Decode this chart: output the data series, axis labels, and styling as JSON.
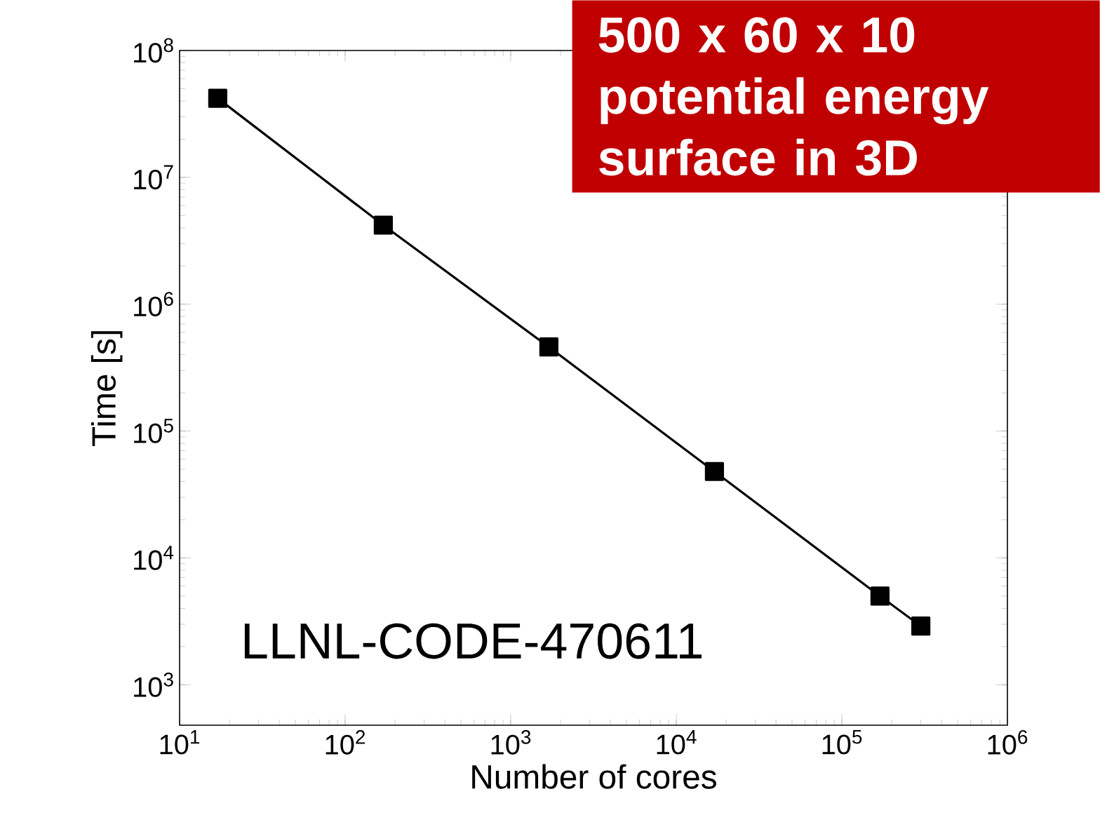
{
  "chart_data": {
    "type": "line",
    "xlabel": "Number of cores",
    "ylabel": "Time [s]",
    "x": [
      17,
      170,
      1700,
      17000,
      170000,
      300000
    ],
    "values": [
      42000000,
      4200000,
      460000,
      48000,
      5000,
      2900
    ],
    "color": "#000000",
    "marker": "square",
    "line_style": "solid",
    "log": "xy",
    "xlim": [
      10,
      1000000
    ],
    "ylim": [
      480,
      100000000
    ],
    "xticks": [
      {
        "value": 10,
        "label": "10$^{1}$"
      },
      {
        "value": 100,
        "label": "10$^{2}$"
      },
      {
        "value": 1000,
        "label": "10$^{3}$"
      },
      {
        "value": 10000,
        "label": "10$^{4}$"
      },
      {
        "value": 100000,
        "label": "10$^{5}$"
      },
      {
        "value": 1000000,
        "label": "10$^{6}$"
      }
    ],
    "yticks": [
      {
        "value": 1000,
        "label": "10$^{3}$"
      },
      {
        "value": 10000,
        "label": "10$^{4}$"
      },
      {
        "value": 100000,
        "label": "10$^{5}$"
      },
      {
        "value": 1000000,
        "label": "10$^{6}$"
      },
      {
        "value": 10000000,
        "label": "10$^{7}$"
      },
      {
        "value": 100000000,
        "label": "10$^{8}$"
      }
    ],
    "annotations": [
      "500 x 60 x 10 potential energy surface in 3D",
      "LLNL-CODE-470611"
    ]
  }
}
